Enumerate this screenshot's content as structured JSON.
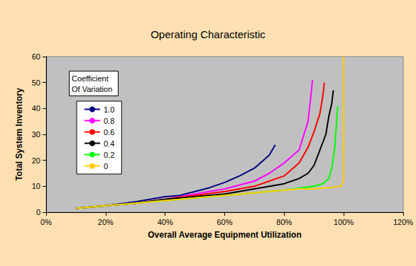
{
  "chart_data": {
    "type": "line",
    "title": "Operating Characteristic",
    "x_label": "Overall Average Equipment Utilization",
    "y_label": "Total System Inventory",
    "legend_title": "Coefficient Of Variation",
    "legend": "top-left",
    "grid": false,
    "xlim": [
      0,
      120
    ],
    "xticks": [
      {
        "value": 0,
        "label": "0%"
      },
      {
        "value": 20,
        "label": "20%"
      },
      {
        "value": 40,
        "label": "40%"
      },
      {
        "value": 60,
        "label": "60%"
      },
      {
        "value": 80,
        "label": "80%"
      },
      {
        "value": 100,
        "label": "100%"
      },
      {
        "value": 120,
        "label": "120%"
      }
    ],
    "ylim": [
      0,
      60
    ],
    "yticks": [
      0,
      10,
      20,
      30,
      40,
      50,
      60
    ],
    "series": [
      {
        "name": "1.0",
        "color": "#000080",
        "x": [
          10,
          20,
          30,
          40,
          45,
          50,
          55,
          60,
          65,
          70,
          75,
          77
        ],
        "values": [
          1.5,
          2.5,
          4,
          6,
          6.5,
          8,
          9.5,
          11.5,
          14,
          17,
          22,
          26
        ]
      },
      {
        "name": "0.8",
        "color": "#FF00FF",
        "x": [
          10,
          20,
          30,
          40,
          50,
          60,
          70,
          75,
          80,
          85,
          88,
          89,
          89.5
        ],
        "values": [
          1.5,
          2.5,
          3.5,
          5,
          7,
          9,
          12,
          15,
          19,
          24,
          35,
          45,
          51
        ]
      },
      {
        "name": "0.6",
        "color": "#FF0000",
        "x": [
          10,
          20,
          30,
          40,
          50,
          60,
          70,
          75,
          80,
          85,
          88,
          90,
          92,
          93,
          93.5
        ],
        "values": [
          1.5,
          2.5,
          3.5,
          5,
          6.5,
          8,
          10,
          12,
          14,
          19,
          25,
          31,
          38,
          45,
          50
        ]
      },
      {
        "name": "0.4",
        "color": "#000000",
        "x": [
          10,
          20,
          30,
          40,
          50,
          60,
          70,
          80,
          85,
          88,
          90,
          92,
          94,
          95,
          96,
          96.5
        ],
        "values": [
          1.5,
          2.5,
          3.5,
          5,
          6,
          7,
          9,
          11,
          13,
          15,
          18,
          24,
          30,
          37,
          42,
          47
        ]
      },
      {
        "name": "0.2",
        "color": "#00FF00",
        "x": [
          10,
          20,
          30,
          40,
          50,
          60,
          70,
          80,
          90,
          93,
          95,
          96,
          97,
          97.5,
          98
        ],
        "values": [
          1.5,
          2.5,
          3.5,
          4.5,
          5.5,
          6.5,
          7.5,
          8.5,
          10,
          11,
          13,
          17,
          25,
          33,
          41
        ]
      },
      {
        "name": "0",
        "color": "#FFCC00",
        "x": [
          10,
          20,
          30,
          40,
          50,
          60,
          70,
          80,
          85,
          90,
          95,
          99,
          100,
          100
        ],
        "values": [
          1.5,
          2.5,
          3.5,
          4.5,
          5.5,
          6.5,
          7.5,
          8.5,
          9,
          9,
          9.5,
          10,
          12,
          60
        ]
      }
    ]
  }
}
